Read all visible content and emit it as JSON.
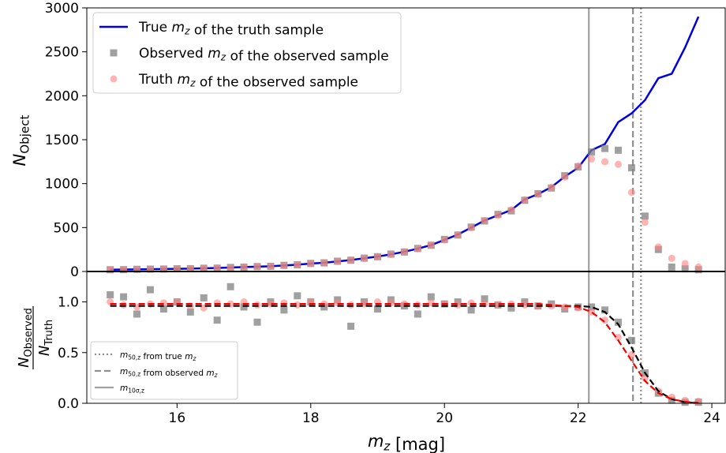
{
  "chart_data": [
    {
      "type": "line",
      "ylabel": "$N_{Object}$",
      "xlim": [
        14.65,
        24.2
      ],
      "ylim": [
        0,
        3000
      ],
      "yticks": [
        0,
        500,
        1000,
        1500,
        2000,
        2500,
        3000
      ],
      "x": [
        15.0,
        15.2,
        15.4,
        15.6,
        15.8,
        16.0,
        16.2,
        16.4,
        16.6,
        16.8,
        17.0,
        17.2,
        17.4,
        17.6,
        17.8,
        18.0,
        18.2,
        18.4,
        18.6,
        18.8,
        19.0,
        19.2,
        19.4,
        19.6,
        19.8,
        20.0,
        20.2,
        20.4,
        20.6,
        20.8,
        21.0,
        21.2,
        21.4,
        21.6,
        21.8,
        22.0,
        22.2,
        22.4,
        22.6,
        22.8,
        23.0,
        23.2,
        23.4,
        23.6,
        23.8
      ],
      "legend": "upper left",
      "series": [
        {
          "name": "True $m_z$ of the truth sample",
          "color": "#0000dd",
          "style": "line",
          "values": [
            20,
            22,
            24,
            26,
            28,
            30,
            33,
            36,
            40,
            45,
            50,
            55,
            60,
            68,
            78,
            90,
            100,
            115,
            130,
            150,
            170,
            195,
            225,
            260,
            300,
            360,
            420,
            500,
            580,
            640,
            700,
            820,
            880,
            960,
            1080,
            1180,
            1380,
            1450,
            1700,
            1800,
            1950,
            2200,
            2250,
            2550,
            2900
          ]
        },
        {
          "name": "Observed $m_z$ of the observed sample",
          "color": "#808080",
          "style": "square",
          "values": [
            20,
            21,
            25,
            27,
            28,
            31,
            32,
            37,
            38,
            46,
            49,
            56,
            59,
            70,
            76,
            92,
            98,
            117,
            128,
            152,
            168,
            198,
            222,
            262,
            298,
            365,
            415,
            505,
            575,
            650,
            690,
            810,
            885,
            950,
            1090,
            1190,
            1360,
            1400,
            1380,
            1180,
            630,
            250,
            50,
            30,
            20
          ]
        },
        {
          "name": "Truth $m_z$ of the observed sample",
          "color": "#ff8080",
          "style": "circle",
          "values": [
            20,
            22,
            23,
            26,
            29,
            30,
            33,
            35,
            40,
            44,
            50,
            54,
            61,
            67,
            78,
            89,
            101,
            114,
            131,
            149,
            171,
            194,
            226,
            258,
            302,
            358,
            418,
            498,
            582,
            638,
            702,
            815,
            878,
            958,
            1075,
            1200,
            1280,
            1250,
            1220,
            900,
            560,
            280,
            150,
            90,
            50
          ]
        }
      ]
    },
    {
      "type": "line",
      "xlabel": "$m_z$ [mag]",
      "ylabel_numerator": "$N_{Observed}$",
      "ylabel_denominator": "$N_{Truth}$",
      "xlim": [
        14.65,
        24.2
      ],
      "xticks": [
        16,
        18,
        20,
        22,
        24
      ],
      "ylim": [
        0,
        1.3
      ],
      "yticks": [
        {
          "value": 0,
          "label": "0.0"
        },
        0.5,
        {
          "value": 1,
          "label": "1.0"
        }
      ],
      "x": [
        15.0,
        15.2,
        15.4,
        15.6,
        15.8,
        16.0,
        16.2,
        16.4,
        16.6,
        16.8,
        17.0,
        17.2,
        17.4,
        17.6,
        17.8,
        18.0,
        18.2,
        18.4,
        18.6,
        18.8,
        19.0,
        19.2,
        19.4,
        19.6,
        19.8,
        20.0,
        20.2,
        20.4,
        20.6,
        20.8,
        21.0,
        21.2,
        21.4,
        21.6,
        21.8,
        22.0,
        22.2,
        22.4,
        22.6,
        22.8,
        23.0,
        23.2,
        23.4,
        23.6,
        23.8
      ],
      "legend": "lower left",
      "series": [
        {
          "color": "#808080",
          "style": "square",
          "values": [
            1.07,
            1.05,
            0.88,
            1.12,
            0.93,
            1.0,
            0.9,
            1.04,
            0.82,
            1.15,
            0.95,
            0.8,
            1.0,
            0.92,
            1.06,
            1.0,
            0.95,
            1.02,
            0.76,
            1.0,
            0.93,
            1.02,
            0.96,
            0.88,
            1.05,
            0.98,
            1.0,
            0.92,
            1.03,
            0.97,
            0.94,
            1.0,
            0.96,
            0.98,
            0.93,
            0.95,
            0.95,
            0.92,
            0.8,
            0.62,
            0.3,
            0.1,
            0.03,
            0.01,
            0.01
          ]
        },
        {
          "color": "#ff8080",
          "style": "circle",
          "values": [
            1.0,
            0.97,
            0.95,
            0.98,
            0.99,
            1.0,
            0.96,
            0.94,
            0.99,
            0.98,
            1.0,
            0.97,
            0.98,
            0.99,
            0.97,
            1.0,
            0.98,
            0.99,
            0.97,
            0.98,
            1.0,
            0.99,
            0.98,
            0.97,
            0.99,
            0.98,
            0.97,
            0.99,
            0.98,
            0.97,
            0.98,
            0.97,
            0.96,
            0.96,
            0.95,
            0.94,
            0.9,
            0.82,
            0.65,
            0.48,
            0.25,
            0.12,
            0.06,
            0.03,
            0.02
          ]
        },
        {
          "color": "#000000",
          "style": "dashed",
          "values": [
            0.96,
            0.96,
            0.96,
            0.96,
            0.96,
            0.96,
            0.96,
            0.96,
            0.96,
            0.96,
            0.96,
            0.96,
            0.96,
            0.96,
            0.96,
            0.96,
            0.96,
            0.96,
            0.96,
            0.96,
            0.96,
            0.96,
            0.96,
            0.96,
            0.96,
            0.96,
            0.96,
            0.96,
            0.96,
            0.96,
            0.96,
            0.96,
            0.96,
            0.96,
            0.96,
            0.96,
            0.95,
            0.9,
            0.78,
            0.55,
            0.3,
            0.12,
            0.04,
            0.01,
            0.0
          ]
        },
        {
          "color": "#ee0000",
          "style": "dashed",
          "values": [
            0.98,
            0.98,
            0.98,
            0.98,
            0.98,
            0.98,
            0.98,
            0.98,
            0.98,
            0.98,
            0.98,
            0.98,
            0.98,
            0.98,
            0.98,
            0.98,
            0.98,
            0.98,
            0.98,
            0.98,
            0.98,
            0.98,
            0.98,
            0.98,
            0.98,
            0.98,
            0.98,
            0.98,
            0.98,
            0.98,
            0.98,
            0.98,
            0.98,
            0.97,
            0.96,
            0.95,
            0.9,
            0.8,
            0.62,
            0.42,
            0.22,
            0.1,
            0.04,
            0.015,
            0.005
          ]
        }
      ],
      "vlines": [
        {
          "name": "$m_{50,z}$ from true $m_z$",
          "x": 22.94,
          "style": "dotted",
          "color": "#909090"
        },
        {
          "name": "$m_{50,z}$ from observed $m_z$",
          "x": 22.82,
          "style": "dashed",
          "color": "#909090"
        },
        {
          "name": "$m_{10σ,z}$",
          "x": 22.16,
          "style": "solid",
          "color": "#a0a0a0"
        }
      ]
    }
  ]
}
